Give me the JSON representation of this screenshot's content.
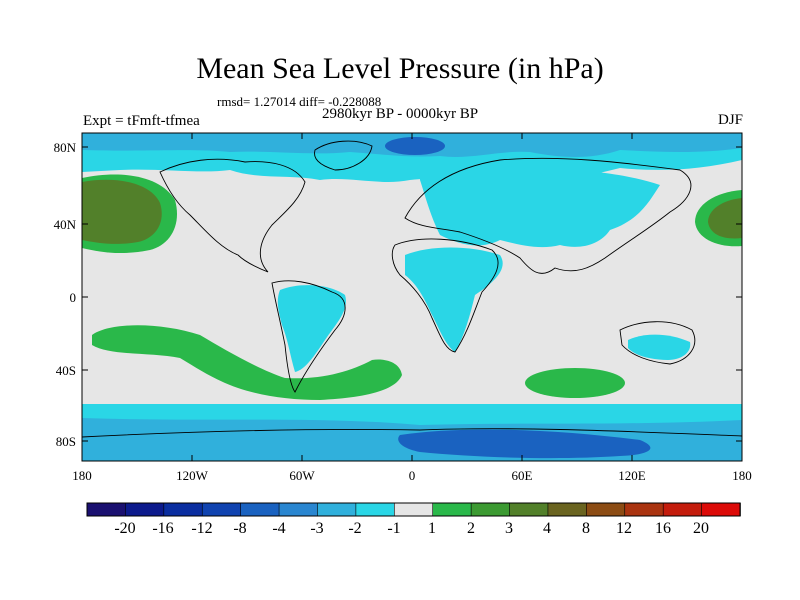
{
  "header": {
    "title": "Mean Sea Level Pressure (in hPa)",
    "stats": "rmsd= 1.27014 diff= -0.228088",
    "period": "2980kyr BP - 0000kyr BP",
    "experiment": "Expt = tFmft-tfmea",
    "season": "DJF"
  },
  "axes": {
    "y_ticks": [
      "80N",
      "40N",
      "0",
      "40S",
      "80S"
    ],
    "x_ticks": [
      "180",
      "120W",
      "60W",
      "0",
      "60E",
      "120E",
      "180"
    ]
  },
  "colorbar": {
    "labels": [
      "-20",
      "-16",
      "-12",
      "-8",
      "-4",
      "-3",
      "-2",
      "-1",
      "1",
      "2",
      "3",
      "4",
      "8",
      "12",
      "16",
      "20"
    ],
    "colors": [
      "#1a1070",
      "#0c1a8c",
      "#0a2ea0",
      "#1043b0",
      "#1a62c0",
      "#2a86d0",
      "#30b0dc",
      "#2ad6e6",
      "#e6e6e6",
      "#2ab84a",
      "#3c9a32",
      "#52802a",
      "#6a6420",
      "#8c4c14",
      "#aa3410",
      "#c41c0c",
      "#dc0a08"
    ]
  }
}
